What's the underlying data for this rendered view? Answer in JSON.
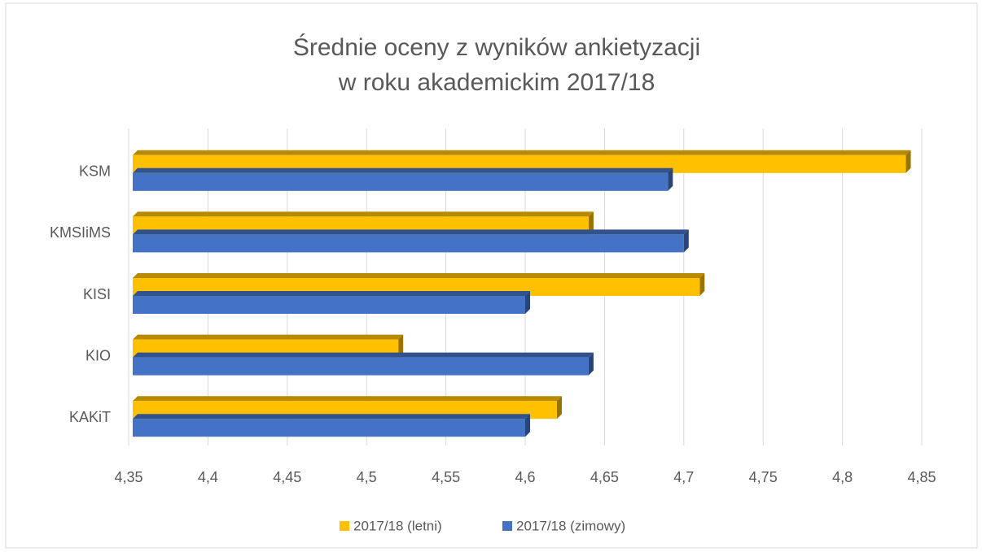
{
  "chart_data": {
    "type": "bar",
    "orientation": "horizontal",
    "title": [
      "Średnie oceny z wyników ankietyzacji",
      "w roku akademickim 2017/18"
    ],
    "categories": [
      "KSM",
      "KMSIiMS",
      "KISI",
      "KIO",
      "KAKiT"
    ],
    "series": [
      {
        "name": "2017/18 (letni)",
        "color": "#ffc000",
        "values": [
          4.84,
          4.64,
          4.71,
          4.52,
          4.62
        ]
      },
      {
        "name": "2017/18 (zimowy)",
        "color": "#4472c4",
        "values": [
          4.69,
          4.7,
          4.6,
          4.64,
          4.6
        ]
      }
    ],
    "xlim": [
      4.35,
      4.85
    ],
    "xticks": [
      {
        "value": 4.35,
        "label": "4,35"
      },
      {
        "value": 4.4,
        "label": "4,4"
      },
      {
        "value": 4.45,
        "label": "4,45"
      },
      {
        "value": 4.5,
        "label": "4,5"
      },
      {
        "value": 4.55,
        "label": "4,55"
      },
      {
        "value": 4.6,
        "label": "4,6"
      },
      {
        "value": 4.65,
        "label": "4,65"
      },
      {
        "value": 4.7,
        "label": "4,7"
      },
      {
        "value": 4.75,
        "label": "4,75"
      },
      {
        "value": 4.8,
        "label": "4,8"
      },
      {
        "value": 4.85,
        "label": "4,85"
      }
    ],
    "grid": true,
    "legend": "bottom"
  }
}
